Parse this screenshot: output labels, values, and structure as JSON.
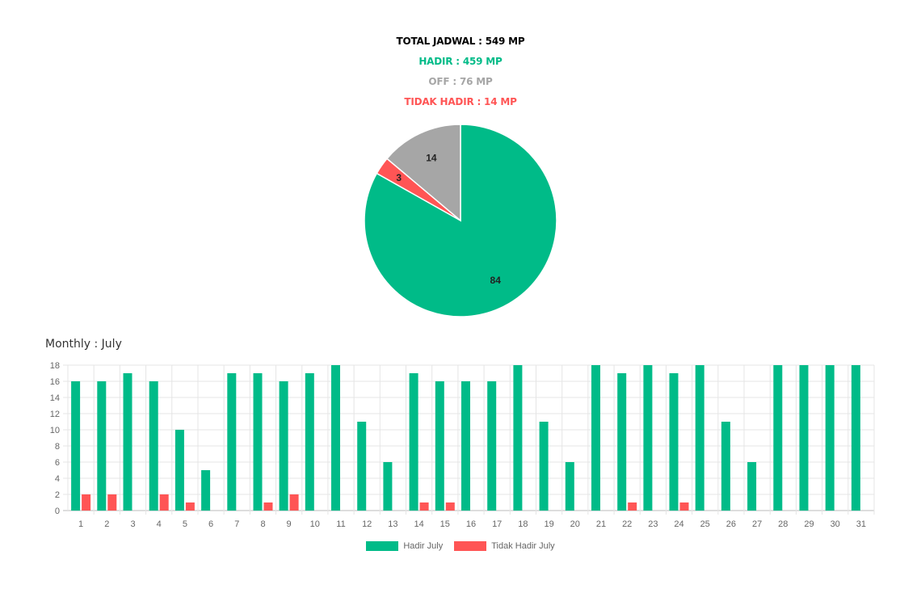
{
  "summary": {
    "total": "TOTAL JADWAL : 549 MP",
    "hadir": "HADIR : 459 MP",
    "off": "OFF : 76 MP",
    "tidak_hadir": "TIDAK HADIR : 14 MP"
  },
  "colors": {
    "hadir": "#00bb88",
    "off": "#a6a6a6",
    "tidak_hadir": "#ff5555",
    "total": "#000000",
    "grid": "#e5e5e5"
  },
  "monthly_title": "Monthly : July",
  "chart_data": [
    {
      "type": "pie",
      "slices": [
        {
          "label": "Hadir",
          "value": 84,
          "color": "#00bb88"
        },
        {
          "label": "Tidak Hadir",
          "value": 3,
          "color": "#ff5555"
        },
        {
          "label": "Off",
          "value": 14,
          "color": "#a6a6a6"
        }
      ]
    },
    {
      "type": "bar",
      "categories": [
        "1",
        "2",
        "3",
        "4",
        "5",
        "6",
        "7",
        "8",
        "9",
        "10",
        "11",
        "12",
        "13",
        "14",
        "15",
        "16",
        "17",
        "18",
        "19",
        "20",
        "21",
        "22",
        "23",
        "24",
        "25",
        "26",
        "27",
        "28",
        "29",
        "30",
        "31"
      ],
      "series": [
        {
          "name": "Hadir July",
          "color": "#00bb88",
          "values": [
            16,
            16,
            17,
            16,
            10,
            5,
            17,
            17,
            16,
            17,
            18,
            11,
            6,
            17,
            16,
            16,
            16,
            18,
            11,
            6,
            18,
            17,
            18,
            17,
            18,
            11,
            6,
            18,
            18,
            18,
            18
          ]
        },
        {
          "name": "Tidak Hadir July",
          "color": "#ff5555",
          "values": [
            2,
            2,
            0,
            2,
            1,
            0,
            0,
            1,
            2,
            0,
            0,
            0,
            0,
            1,
            1,
            0,
            0,
            0,
            0,
            0,
            0,
            1,
            0,
            1,
            0,
            0,
            0,
            0,
            0,
            0,
            0
          ]
        }
      ],
      "ylim": [
        0,
        18
      ],
      "yticks": [
        0,
        2,
        4,
        6,
        8,
        10,
        12,
        14,
        16,
        18
      ],
      "grid": true,
      "legend": "bottom"
    }
  ]
}
